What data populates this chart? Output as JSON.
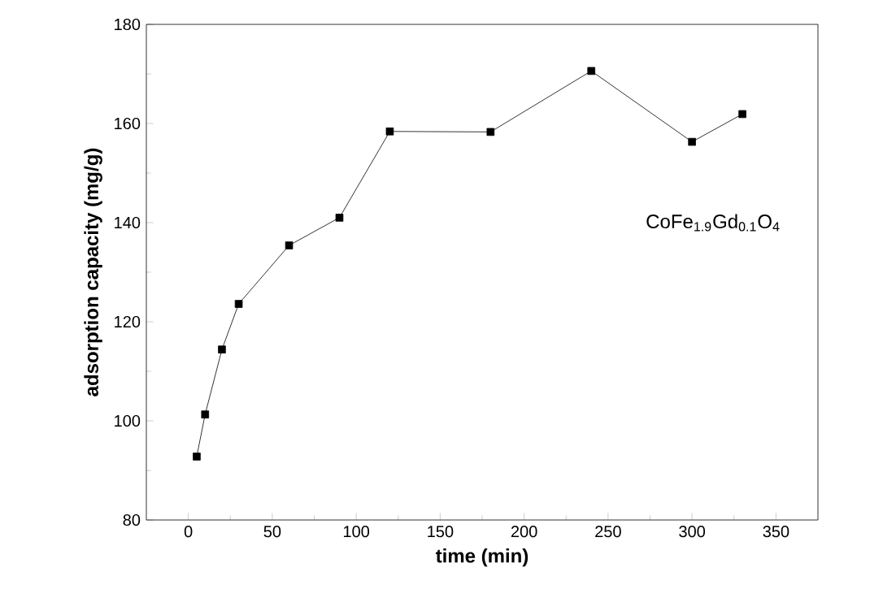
{
  "chart_data": {
    "type": "line",
    "xlabel": "time (min)",
    "ylabel": "adsorption capacity (mg/g)",
    "x": [
      5,
      10,
      20,
      30,
      60,
      90,
      120,
      180,
      240,
      300,
      330
    ],
    "values": [
      92.8,
      101.3,
      114.4,
      123.6,
      135.4,
      141,
      158.4,
      158.3,
      170.6,
      156.3,
      161.9
    ],
    "color": "#000000",
    "marker": "square",
    "line_style": "solid",
    "xlim": [
      -25,
      375
    ],
    "ylim": [
      80,
      180
    ],
    "xticks": [
      0,
      50,
      100,
      150,
      200,
      250,
      300,
      350
    ],
    "yticks": [
      80,
      100,
      120,
      140,
      160,
      180
    ],
    "annotations": [
      "CoFe$_{1.9}$Gd$_{0.1}$O$_{4}$"
    ]
  }
}
